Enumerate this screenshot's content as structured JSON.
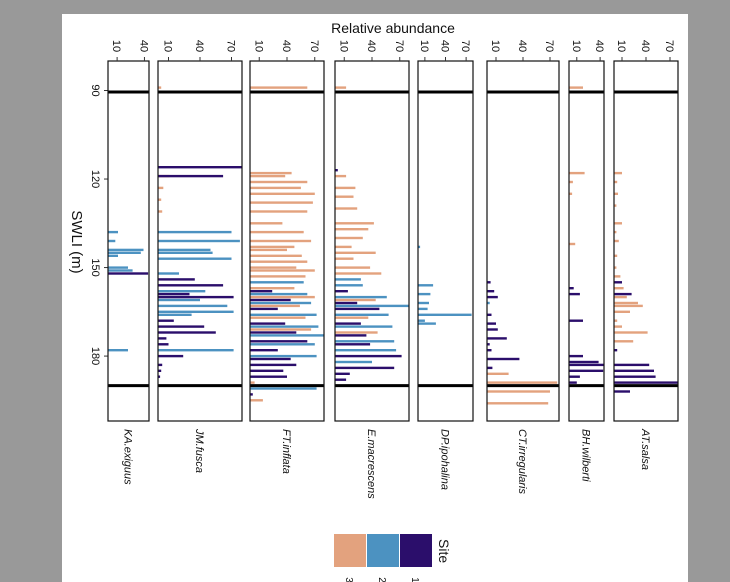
{
  "chart_data": {
    "type": "bar",
    "title": "Relative abundance",
    "xlabel": "Relative abundance",
    "ylabel": "SWLI (m)",
    "ylim": [
      80,
      202
    ],
    "y_ticks": [
      "90",
      "120",
      "150",
      "180"
    ],
    "y_tick_values": [
      90,
      120,
      150,
      180
    ],
    "reference_lines": [
      90.5,
      190
    ],
    "legend": {
      "title": "Site",
      "entries": [
        "3",
        "2",
        "1"
      ],
      "placement": "bottom-right"
    },
    "colors": {
      "3": "#E3A27E",
      "2": "#4C92C1",
      "1": "#2B0E6B"
    },
    "panels": [
      {
        "name": "KA.exiguus",
        "ticks": [
          "10",
          "40"
        ],
        "tick_values": [
          10,
          40
        ],
        "xmax": 45,
        "bars": [
          {
            "y": 138,
            "x": 11,
            "site": "2"
          },
          {
            "y": 141,
            "x": 8,
            "site": "2"
          },
          {
            "y": 144,
            "x": 39,
            "site": "2"
          },
          {
            "y": 145,
            "x": 36,
            "site": "2"
          },
          {
            "y": 146,
            "x": 11,
            "site": "2"
          },
          {
            "y": 150,
            "x": 22,
            "site": "2"
          },
          {
            "y": 151,
            "x": 27,
            "site": "2"
          },
          {
            "y": 152,
            "x": 44,
            "site": "1"
          },
          {
            "y": 178,
            "x": 22,
            "site": "2"
          }
        ]
      },
      {
        "name": "JM.fusca",
        "ticks": [
          "10",
          "40",
          "70"
        ],
        "tick_values": [
          10,
          40,
          70
        ],
        "xmax": 80,
        "bars": [
          {
            "y": 89,
            "x": 3,
            "site": "3"
          },
          {
            "y": 116,
            "x": 90,
            "site": "1"
          },
          {
            "y": 119,
            "x": 11,
            "site": "3"
          },
          {
            "y": 119,
            "x": 62,
            "site": "1"
          },
          {
            "y": 123,
            "x": 5,
            "site": "3"
          },
          {
            "y": 127,
            "x": 3,
            "site": "3"
          },
          {
            "y": 131,
            "x": 4,
            "site": "3"
          },
          {
            "y": 138,
            "x": 70,
            "site": "2"
          },
          {
            "y": 141,
            "x": 78,
            "site": "2"
          },
          {
            "y": 144,
            "x": 50,
            "site": "2"
          },
          {
            "y": 145,
            "x": 52,
            "site": "2"
          },
          {
            "y": 147,
            "x": 70,
            "site": "2"
          },
          {
            "y": 152,
            "x": 20,
            "site": "2"
          },
          {
            "y": 154,
            "x": 35,
            "site": "1"
          },
          {
            "y": 156,
            "x": 62,
            "site": "1"
          },
          {
            "y": 158,
            "x": 45,
            "site": "2"
          },
          {
            "y": 159,
            "x": 30,
            "site": "1"
          },
          {
            "y": 160,
            "x": 72,
            "site": "1"
          },
          {
            "y": 161,
            "x": 40,
            "site": "2"
          },
          {
            "y": 163,
            "x": 66,
            "site": "2"
          },
          {
            "y": 165,
            "x": 72,
            "site": "2"
          },
          {
            "y": 166,
            "x": 32,
            "site": "2"
          },
          {
            "y": 168,
            "x": 15,
            "site": "1"
          },
          {
            "y": 170,
            "x": 44,
            "site": "1"
          },
          {
            "y": 172,
            "x": 55,
            "site": "1"
          },
          {
            "y": 174,
            "x": 8,
            "site": "1"
          },
          {
            "y": 176,
            "x": 10,
            "site": "1"
          },
          {
            "y": 178,
            "x": 72,
            "site": "2"
          },
          {
            "y": 180,
            "x": 24,
            "site": "1"
          },
          {
            "y": 183,
            "x": 4,
            "site": "1"
          },
          {
            "y": 185,
            "x": 3,
            "site": "1"
          },
          {
            "y": 187,
            "x": 2,
            "site": "1"
          }
        ]
      },
      {
        "name": "FT.inflata",
        "ticks": [
          "10",
          "40",
          "70"
        ],
        "tick_values": [
          10,
          40,
          70
        ],
        "xmax": 80,
        "bars": [
          {
            "y": 89,
            "x": 62,
            "site": "3"
          },
          {
            "y": 118,
            "x": 45,
            "site": "3"
          },
          {
            "y": 119,
            "x": 38,
            "site": "3"
          },
          {
            "y": 121,
            "x": 62,
            "site": "3"
          },
          {
            "y": 123,
            "x": 55,
            "site": "3"
          },
          {
            "y": 125,
            "x": 70,
            "site": "3"
          },
          {
            "y": 128,
            "x": 68,
            "site": "3"
          },
          {
            "y": 131,
            "x": 62,
            "site": "3"
          },
          {
            "y": 135,
            "x": 35,
            "site": "3"
          },
          {
            "y": 138,
            "x": 58,
            "site": "3"
          },
          {
            "y": 141,
            "x": 66,
            "site": "3"
          },
          {
            "y": 143,
            "x": 48,
            "site": "3"
          },
          {
            "y": 144,
            "x": 40,
            "site": "3"
          },
          {
            "y": 146,
            "x": 56,
            "site": "3"
          },
          {
            "y": 148,
            "x": 62,
            "site": "3"
          },
          {
            "y": 150,
            "x": 50,
            "site": "3"
          },
          {
            "y": 151,
            "x": 70,
            "site": "3"
          },
          {
            "y": 153,
            "x": 60,
            "site": "3"
          },
          {
            "y": 155,
            "x": 58,
            "site": "2"
          },
          {
            "y": 157,
            "x": 48,
            "site": "3"
          },
          {
            "y": 158,
            "x": 24,
            "site": "1"
          },
          {
            "y": 159,
            "x": 62,
            "site": "2"
          },
          {
            "y": 160,
            "x": 70,
            "site": "3"
          },
          {
            "y": 161,
            "x": 44,
            "site": "1"
          },
          {
            "y": 162,
            "x": 66,
            "site": "2"
          },
          {
            "y": 163,
            "x": 54,
            "site": "3"
          },
          {
            "y": 164,
            "x": 30,
            "site": "1"
          },
          {
            "y": 166,
            "x": 72,
            "site": "2"
          },
          {
            "y": 167,
            "x": 60,
            "site": "3"
          },
          {
            "y": 169,
            "x": 38,
            "site": "1"
          },
          {
            "y": 170,
            "x": 74,
            "site": "2"
          },
          {
            "y": 171,
            "x": 66,
            "site": "3"
          },
          {
            "y": 172,
            "x": 50,
            "site": "1"
          },
          {
            "y": 173,
            "x": 80,
            "site": "2"
          },
          {
            "y": 175,
            "x": 62,
            "site": "1"
          },
          {
            "y": 176,
            "x": 70,
            "site": "2"
          },
          {
            "y": 178,
            "x": 30,
            "site": "1"
          },
          {
            "y": 180,
            "x": 72,
            "site": "2"
          },
          {
            "y": 181,
            "x": 44,
            "site": "1"
          },
          {
            "y": 183,
            "x": 50,
            "site": "1"
          },
          {
            "y": 185,
            "x": 36,
            "site": "1"
          },
          {
            "y": 187,
            "x": 40,
            "site": "1"
          },
          {
            "y": 189,
            "x": 5,
            "site": "3"
          },
          {
            "y": 191,
            "x": 72,
            "site": "2"
          },
          {
            "y": 193,
            "x": 3,
            "site": "1"
          },
          {
            "y": 195,
            "x": 14,
            "site": "3"
          }
        ]
      },
      {
        "name": "E.macrescens",
        "ticks": [
          "10",
          "40",
          "70"
        ],
        "tick_values": [
          10,
          40,
          70
        ],
        "xmax": 80,
        "bars": [
          {
            "y": 89,
            "x": 12,
            "site": "3"
          },
          {
            "y": 117,
            "x": 3,
            "site": "1"
          },
          {
            "y": 119,
            "x": 12,
            "site": "3"
          },
          {
            "y": 123,
            "x": 22,
            "site": "3"
          },
          {
            "y": 126,
            "x": 20,
            "site": "3"
          },
          {
            "y": 130,
            "x": 24,
            "site": "3"
          },
          {
            "y": 135,
            "x": 42,
            "site": "3"
          },
          {
            "y": 137,
            "x": 36,
            "site": "3"
          },
          {
            "y": 140,
            "x": 30,
            "site": "3"
          },
          {
            "y": 143,
            "x": 18,
            "site": "3"
          },
          {
            "y": 145,
            "x": 44,
            "site": "3"
          },
          {
            "y": 147,
            "x": 20,
            "site": "3"
          },
          {
            "y": 150,
            "x": 38,
            "site": "3"
          },
          {
            "y": 152,
            "x": 50,
            "site": "3"
          },
          {
            "y": 154,
            "x": 28,
            "site": "2"
          },
          {
            "y": 156,
            "x": 30,
            "site": "2"
          },
          {
            "y": 158,
            "x": 14,
            "site": "1"
          },
          {
            "y": 160,
            "x": 56,
            "site": "2"
          },
          {
            "y": 161,
            "x": 44,
            "site": "3"
          },
          {
            "y": 162,
            "x": 24,
            "site": "1"
          },
          {
            "y": 163,
            "x": 80,
            "site": "2"
          },
          {
            "y": 164,
            "x": 48,
            "site": "1"
          },
          {
            "y": 166,
            "x": 58,
            "site": "2"
          },
          {
            "y": 167,
            "x": 36,
            "site": "3"
          },
          {
            "y": 169,
            "x": 28,
            "site": "1"
          },
          {
            "y": 170,
            "x": 62,
            "site": "2"
          },
          {
            "y": 172,
            "x": 46,
            "site": "3"
          },
          {
            "y": 173,
            "x": 34,
            "site": "1"
          },
          {
            "y": 175,
            "x": 64,
            "site": "2"
          },
          {
            "y": 176,
            "x": 38,
            "site": "1"
          },
          {
            "y": 178,
            "x": 66,
            "site": "2"
          },
          {
            "y": 180,
            "x": 72,
            "site": "1"
          },
          {
            "y": 182,
            "x": 40,
            "site": "2"
          },
          {
            "y": 184,
            "x": 64,
            "site": "1"
          },
          {
            "y": 186,
            "x": 16,
            "site": "1"
          },
          {
            "y": 188,
            "x": 12,
            "site": "1"
          }
        ]
      },
      {
        "name": "DP.ipohalina",
        "ticks": [
          "10",
          "40",
          "70"
        ],
        "tick_values": [
          10,
          40,
          70
        ],
        "xmax": 80,
        "bars": [
          {
            "y": 143,
            "x": 3,
            "site": "2"
          },
          {
            "y": 156,
            "x": 22,
            "site": "2"
          },
          {
            "y": 159,
            "x": 18,
            "site": "2"
          },
          {
            "y": 162,
            "x": 16,
            "site": "2"
          },
          {
            "y": 164,
            "x": 14,
            "site": "2"
          },
          {
            "y": 166,
            "x": 78,
            "site": "2"
          },
          {
            "y": 168,
            "x": 10,
            "site": "2"
          },
          {
            "y": 169,
            "x": 26,
            "site": "2"
          }
        ]
      },
      {
        "name": "CT.irregularis",
        "ticks": [
          "10",
          "40",
          "70"
        ],
        "tick_values": [
          10,
          40,
          70
        ],
        "xmax": 80,
        "bars": [
          {
            "y": 155,
            "x": 4,
            "site": "1"
          },
          {
            "y": 158,
            "x": 8,
            "site": "1"
          },
          {
            "y": 160,
            "x": 12,
            "site": "1"
          },
          {
            "y": 162,
            "x": 3,
            "site": "2"
          },
          {
            "y": 166,
            "x": 5,
            "site": "1"
          },
          {
            "y": 169,
            "x": 10,
            "site": "1"
          },
          {
            "y": 171,
            "x": 12,
            "site": "1"
          },
          {
            "y": 174,
            "x": 22,
            "site": "1"
          },
          {
            "y": 176,
            "x": 3,
            "site": "1"
          },
          {
            "y": 178,
            "x": 5,
            "site": "1"
          },
          {
            "y": 181,
            "x": 36,
            "site": "1"
          },
          {
            "y": 184,
            "x": 6,
            "site": "1"
          },
          {
            "y": 186,
            "x": 24,
            "site": "3"
          },
          {
            "y": 189,
            "x": 78,
            "site": "3"
          },
          {
            "y": 192,
            "x": 70,
            "site": "3"
          },
          {
            "y": 196,
            "x": 68,
            "site": "3"
          }
        ]
      },
      {
        "name": "BH.wilberti",
        "ticks": [
          "10",
          "40"
        ],
        "tick_values": [
          10,
          40
        ],
        "xmax": 45,
        "bars": [
          {
            "y": 89,
            "x": 18,
            "site": "3"
          },
          {
            "y": 118,
            "x": 20,
            "site": "3"
          },
          {
            "y": 121,
            "x": 5,
            "site": "3"
          },
          {
            "y": 125,
            "x": 4,
            "site": "3"
          },
          {
            "y": 142,
            "x": 8,
            "site": "3"
          },
          {
            "y": 157,
            "x": 6,
            "site": "1"
          },
          {
            "y": 159,
            "x": 14,
            "site": "1"
          },
          {
            "y": 168,
            "x": 18,
            "site": "1"
          },
          {
            "y": 180,
            "x": 18,
            "site": "1"
          },
          {
            "y": 182,
            "x": 38,
            "site": "1"
          },
          {
            "y": 183,
            "x": 46,
            "site": "1"
          },
          {
            "y": 185,
            "x": 44,
            "site": "1"
          },
          {
            "y": 187,
            "x": 14,
            "site": "1"
          },
          {
            "y": 189,
            "x": 10,
            "site": "1"
          }
        ]
      },
      {
        "name": "AT.salsa",
        "ticks": [
          "10",
          "40",
          "70"
        ],
        "tick_values": [
          10,
          40,
          70
        ],
        "xmax": 80,
        "bars": [
          {
            "y": 118,
            "x": 10,
            "site": "3"
          },
          {
            "y": 121,
            "x": 4,
            "site": "3"
          },
          {
            "y": 125,
            "x": 5,
            "site": "3"
          },
          {
            "y": 129,
            "x": 3,
            "site": "3"
          },
          {
            "y": 135,
            "x": 10,
            "site": "3"
          },
          {
            "y": 138,
            "x": 3,
            "site": "3"
          },
          {
            "y": 141,
            "x": 6,
            "site": "3"
          },
          {
            "y": 146,
            "x": 4,
            "site": "3"
          },
          {
            "y": 150,
            "x": 3,
            "site": "3"
          },
          {
            "y": 153,
            "x": 8,
            "site": "3"
          },
          {
            "y": 155,
            "x": 10,
            "site": "1"
          },
          {
            "y": 157,
            "x": 12,
            "site": "3"
          },
          {
            "y": 159,
            "x": 22,
            "site": "1"
          },
          {
            "y": 160,
            "x": 16,
            "site": "3"
          },
          {
            "y": 162,
            "x": 30,
            "site": "3"
          },
          {
            "y": 163,
            "x": 36,
            "site": "3"
          },
          {
            "y": 165,
            "x": 20,
            "site": "3"
          },
          {
            "y": 168,
            "x": 4,
            "site": "3"
          },
          {
            "y": 170,
            "x": 10,
            "site": "3"
          },
          {
            "y": 172,
            "x": 42,
            "site": "3"
          },
          {
            "y": 175,
            "x": 24,
            "site": "3"
          },
          {
            "y": 178,
            "x": 4,
            "site": "1"
          },
          {
            "y": 183,
            "x": 44,
            "site": "1"
          },
          {
            "y": 185,
            "x": 50,
            "site": "1"
          },
          {
            "y": 187,
            "x": 52,
            "site": "1"
          },
          {
            "y": 189,
            "x": 80,
            "site": "1"
          },
          {
            "y": 192,
            "x": 20,
            "site": "1"
          }
        ]
      }
    ]
  }
}
